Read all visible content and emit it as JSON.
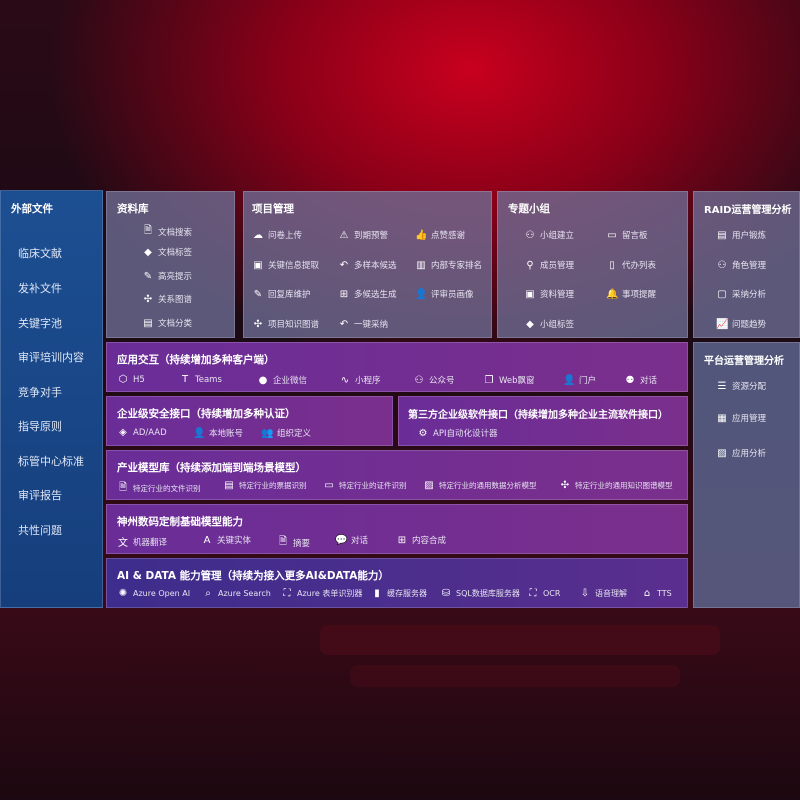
{
  "external": {
    "title": "外部文件",
    "items": [
      "临床文献",
      "发补文件",
      "关键字池",
      "审评培训内容",
      "竞争对手",
      "指导原则",
      "标管中心标准",
      "审评报告",
      "共性问题"
    ]
  },
  "library": {
    "title": "资料库",
    "items": [
      {
        "icon": "doc-search-icon",
        "label": "文档搜索"
      },
      {
        "icon": "tag-icon",
        "label": "文档标签"
      },
      {
        "icon": "pen-icon",
        "label": "高亮提示"
      },
      {
        "icon": "graph-icon",
        "label": "关系图谱"
      },
      {
        "icon": "doc-category-icon",
        "label": "文档分类"
      }
    ]
  },
  "project": {
    "title": "项目管理",
    "items": [
      {
        "icon": "cloud-upload-icon",
        "label": "问卷上传"
      },
      {
        "icon": "alarm-icon",
        "label": "到期预警"
      },
      {
        "icon": "thumbs-up-icon",
        "label": "点赞感谢"
      },
      {
        "icon": "info-extract-icon",
        "label": "关键信息提取"
      },
      {
        "icon": "reply-icon",
        "label": "多样本候选"
      },
      {
        "icon": "ranking-icon",
        "label": "内部专家排名"
      },
      {
        "icon": "edit-icon",
        "label": "回复库维护"
      },
      {
        "icon": "puzzle-icon",
        "label": "多候选生成"
      },
      {
        "icon": "user-icon",
        "label": "评审员画像"
      },
      {
        "icon": "graph-icon",
        "label": "项目知识图谱"
      },
      {
        "icon": "reply-icon",
        "label": "一键采纳"
      }
    ]
  },
  "group": {
    "title": "专题小组",
    "items": [
      {
        "icon": "group-icon",
        "label": "小组建立"
      },
      {
        "icon": "bbs-icon",
        "label": "留言板"
      },
      {
        "icon": "add-user-icon",
        "label": "成员管理"
      },
      {
        "icon": "clipboard-icon",
        "label": "代办列表"
      },
      {
        "icon": "folder-icon",
        "label": "资料管理"
      },
      {
        "icon": "bell-icon",
        "label": "事项提醒"
      },
      {
        "icon": "tag-icon",
        "label": "小组标签"
      }
    ]
  },
  "raid": {
    "title": "RAID运营管理分析",
    "items": [
      {
        "icon": "id-card-icon",
        "label": "用户锻炼"
      },
      {
        "icon": "users-icon",
        "label": "角色管理"
      },
      {
        "icon": "qa-icon",
        "label": "采纳分析"
      },
      {
        "icon": "trend-icon",
        "label": "问题趋势"
      }
    ]
  },
  "platform": {
    "title": "平台运营管理分析",
    "items": [
      {
        "icon": "checklist-icon",
        "label": "资源分配"
      },
      {
        "icon": "apps-icon",
        "label": "应用管理"
      },
      {
        "icon": "chart-icon",
        "label": "应用分析"
      }
    ]
  },
  "interaction": {
    "title": "应用交互（持续增加多种客户端）",
    "items": [
      {
        "icon": "html5-icon",
        "label": "H5"
      },
      {
        "icon": "teams-icon",
        "label": "Teams"
      },
      {
        "icon": "wechat-work-icon",
        "label": "企业微信"
      },
      {
        "icon": "miniprogram-icon",
        "label": "小程序"
      },
      {
        "icon": "official-account-icon",
        "label": "公众号"
      },
      {
        "icon": "window-icon",
        "label": "Web飘窗"
      },
      {
        "icon": "portal-icon",
        "label": "门户"
      },
      {
        "icon": "chat-icon",
        "label": "对话"
      }
    ]
  },
  "security": {
    "title": "企业级安全接口（持续增加多种认证）",
    "items": [
      {
        "icon": "ad-icon",
        "label": "AD/AAD"
      },
      {
        "icon": "local-account-icon",
        "label": "本地账号"
      },
      {
        "icon": "org-icon",
        "label": "组织定义"
      }
    ]
  },
  "thirdparty": {
    "title": "第三方企业级软件接口（持续增加多种企业主流软件接口）",
    "items": [
      {
        "icon": "gear-icon",
        "label": "API自动化设计器"
      }
    ]
  },
  "industry": {
    "title": "产业模型库（持续添加端到端场景模型）",
    "items": [
      {
        "icon": "file-icon",
        "label": "特定行业的文件识别"
      },
      {
        "icon": "receipt-icon",
        "label": "特定行业的票据识别"
      },
      {
        "icon": "id-card-icon",
        "label": "特定行业的证件识别"
      },
      {
        "icon": "image-icon",
        "label": "特定行业的通用数据分析模型"
      },
      {
        "icon": "graph-icon",
        "label": "特定行业的通用知识图谱模型"
      }
    ]
  },
  "foundation": {
    "title": "神州数码定制基础模型能力",
    "items": [
      {
        "icon": "translate-icon",
        "label": "机器翻译"
      },
      {
        "icon": "entity-icon",
        "label": "关键实体"
      },
      {
        "icon": "summary-icon",
        "label": "摘要"
      },
      {
        "icon": "chat-icon",
        "label": "对话"
      },
      {
        "icon": "puzzle-icon",
        "label": "内容合成"
      }
    ]
  },
  "aidata": {
    "title": "AI & DATA 能力管理（持续为接入更多AI&DATA能力）",
    "items": [
      {
        "icon": "openai-icon",
        "label": "Azure Open AI"
      },
      {
        "icon": "search-icon",
        "label": "Azure Search"
      },
      {
        "icon": "form-recognizer-icon",
        "label": "Azure 表单识别器"
      },
      {
        "icon": "cache-icon",
        "label": "缓存服务器"
      },
      {
        "icon": "sql-icon",
        "label": "SQL数据库服务器"
      },
      {
        "icon": "ocr-icon",
        "label": "OCR"
      },
      {
        "icon": "speech-icon",
        "label": "语音理解"
      },
      {
        "icon": "tts-icon",
        "label": "TTS"
      }
    ]
  }
}
